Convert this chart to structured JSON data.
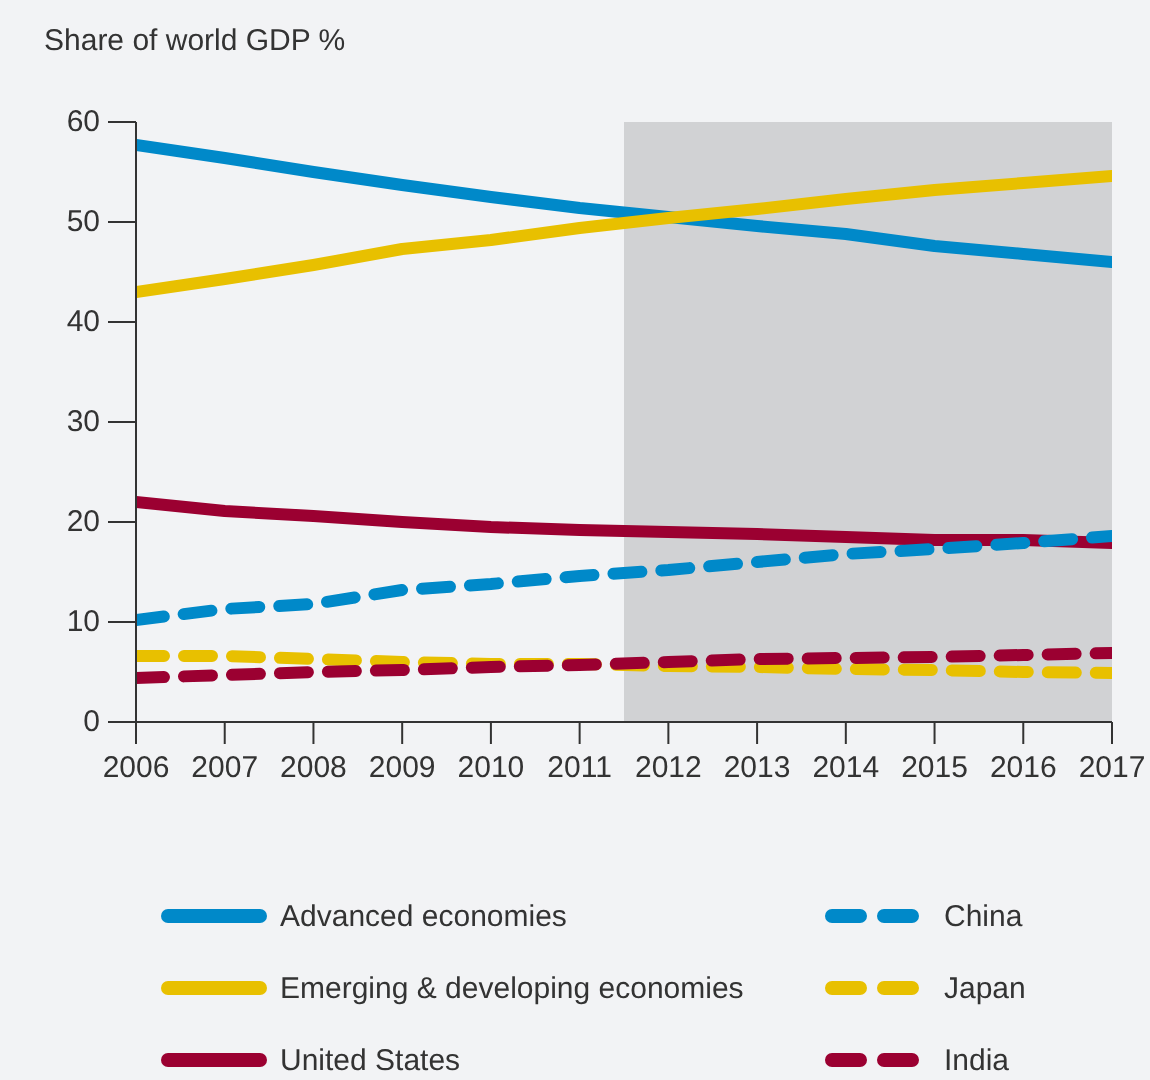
{
  "chart_data": {
    "type": "line",
    "ylabel": "Share of world GDP %",
    "x": [
      2006,
      2007,
      2008,
      2009,
      2010,
      2011,
      2012,
      2013,
      2014,
      2015,
      2016,
      2017
    ],
    "xlim": [
      2006,
      2017
    ],
    "xticks": [
      2006,
      2007,
      2008,
      2009,
      2010,
      2011,
      2012,
      2013,
      2014,
      2015,
      2016,
      2017
    ],
    "ylim": [
      0,
      60
    ],
    "yticks": [
      0,
      10,
      20,
      30,
      40,
      50,
      60
    ],
    "grid": false,
    "legend": "bottom",
    "marker": "none",
    "bands": [
      {
        "axis": "x",
        "from": 2011.5,
        "to": 2017,
        "color": "#d1d2d4"
      }
    ],
    "series": [
      {
        "name": "Advanced economies",
        "color": "#0089c9",
        "line_style": "solid",
        "values": [
          57.7,
          56.4,
          55,
          53.7,
          52.5,
          51.4,
          50.5,
          49.6,
          48.8,
          47.6,
          46.8,
          46.0
        ]
      },
      {
        "name": "Emerging & developing economies",
        "color": "#e8c000",
        "line_style": "solid",
        "values": [
          43,
          44.3,
          45.7,
          47.3,
          48.2,
          49.4,
          50.4,
          51.3,
          52.3,
          53.2,
          53.9,
          54.6
        ]
      },
      {
        "name": "United States",
        "color": "#9b0031",
        "line_style": "solid",
        "values": [
          22,
          21.1,
          20.6,
          20.0,
          19.5,
          19.2,
          19.0,
          18.8,
          18.5,
          18.2,
          18.2,
          17.9
        ]
      },
      {
        "name": "China",
        "color": "#0089c9",
        "line_style": "dashed",
        "values": [
          10.2,
          11.3,
          11.8,
          13.2,
          13.8,
          14.6,
          15.2,
          16.0,
          16.8,
          17.3,
          17.9,
          18.6
        ]
      },
      {
        "name": "Japan",
        "color": "#e8c000",
        "line_style": "dashed",
        "values": [
          6.6,
          6.6,
          6.3,
          6.0,
          5.8,
          5.8,
          5.6,
          5.5,
          5.3,
          5.2,
          5.0,
          4.9
        ]
      },
      {
        "name": "India",
        "color": "#9b0031",
        "line_style": "dashed",
        "values": [
          4.4,
          4.7,
          5.0,
          5.2,
          5.5,
          5.7,
          6.0,
          6.3,
          6.4,
          6.5,
          6.7,
          6.9
        ]
      }
    ]
  }
}
